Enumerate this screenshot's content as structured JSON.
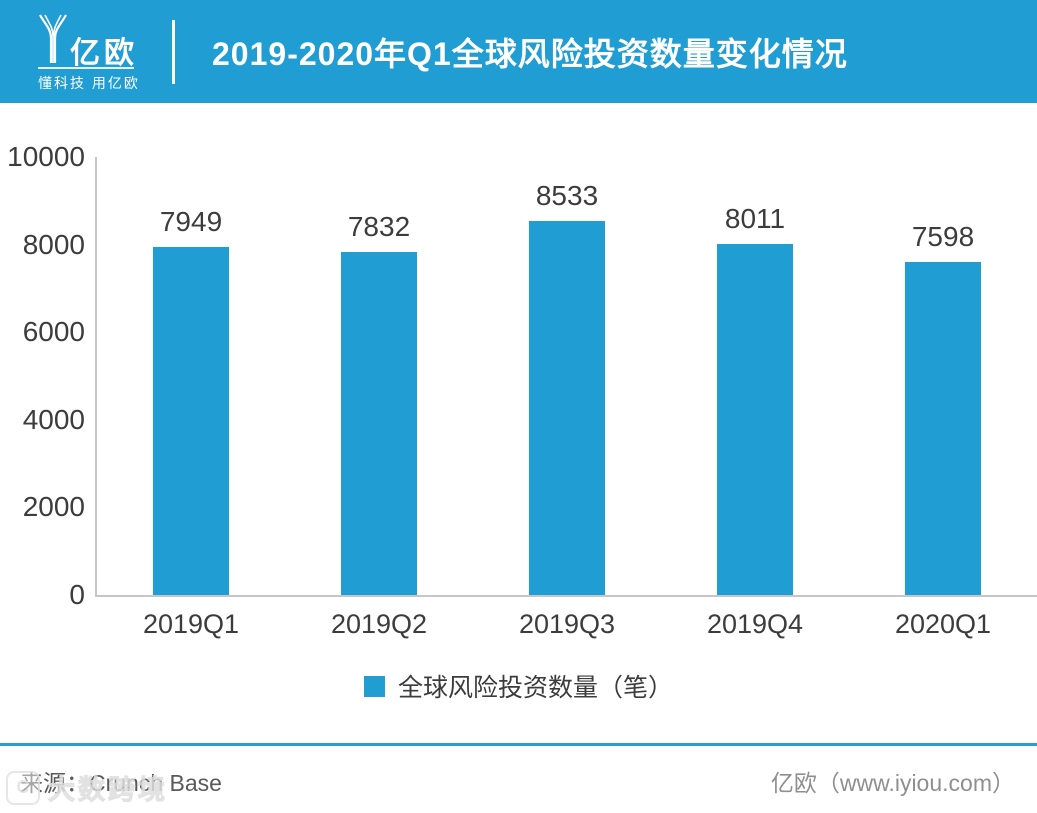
{
  "header": {
    "logo_text": "亿欧",
    "logo_tagline": "懂科技 用亿欧",
    "title": "2019-2020年Q1全球风险投资数量变化情况"
  },
  "chart_data": {
    "type": "bar",
    "title": "2019-2020年Q1全球风险投资数量变化情况",
    "categories": [
      "2019Q1",
      "2019Q2",
      "2019Q3",
      "2019Q4",
      "2020Q1"
    ],
    "values": [
      7949,
      7832,
      8533,
      8011,
      7598
    ],
    "legend": "全球风险投资数量（笔）",
    "legend_position": "bottom",
    "xlabel": "",
    "ylabel": "",
    "ylim": [
      0,
      10000
    ],
    "yticks": [
      0,
      2000,
      4000,
      6000,
      8000,
      10000
    ],
    "grid": false,
    "bar_color": "#209DD3"
  },
  "footer": {
    "source": "来源：Crunch Base",
    "credit": "亿欧（www.iyiou.com）",
    "watermark": "大数跨境"
  },
  "colors": {
    "accent_blue": "#209DD3",
    "divider_blue": "#2E9EC7",
    "axis_gray": "#C6C6C6",
    "text_dark": "#3C3C3C"
  }
}
